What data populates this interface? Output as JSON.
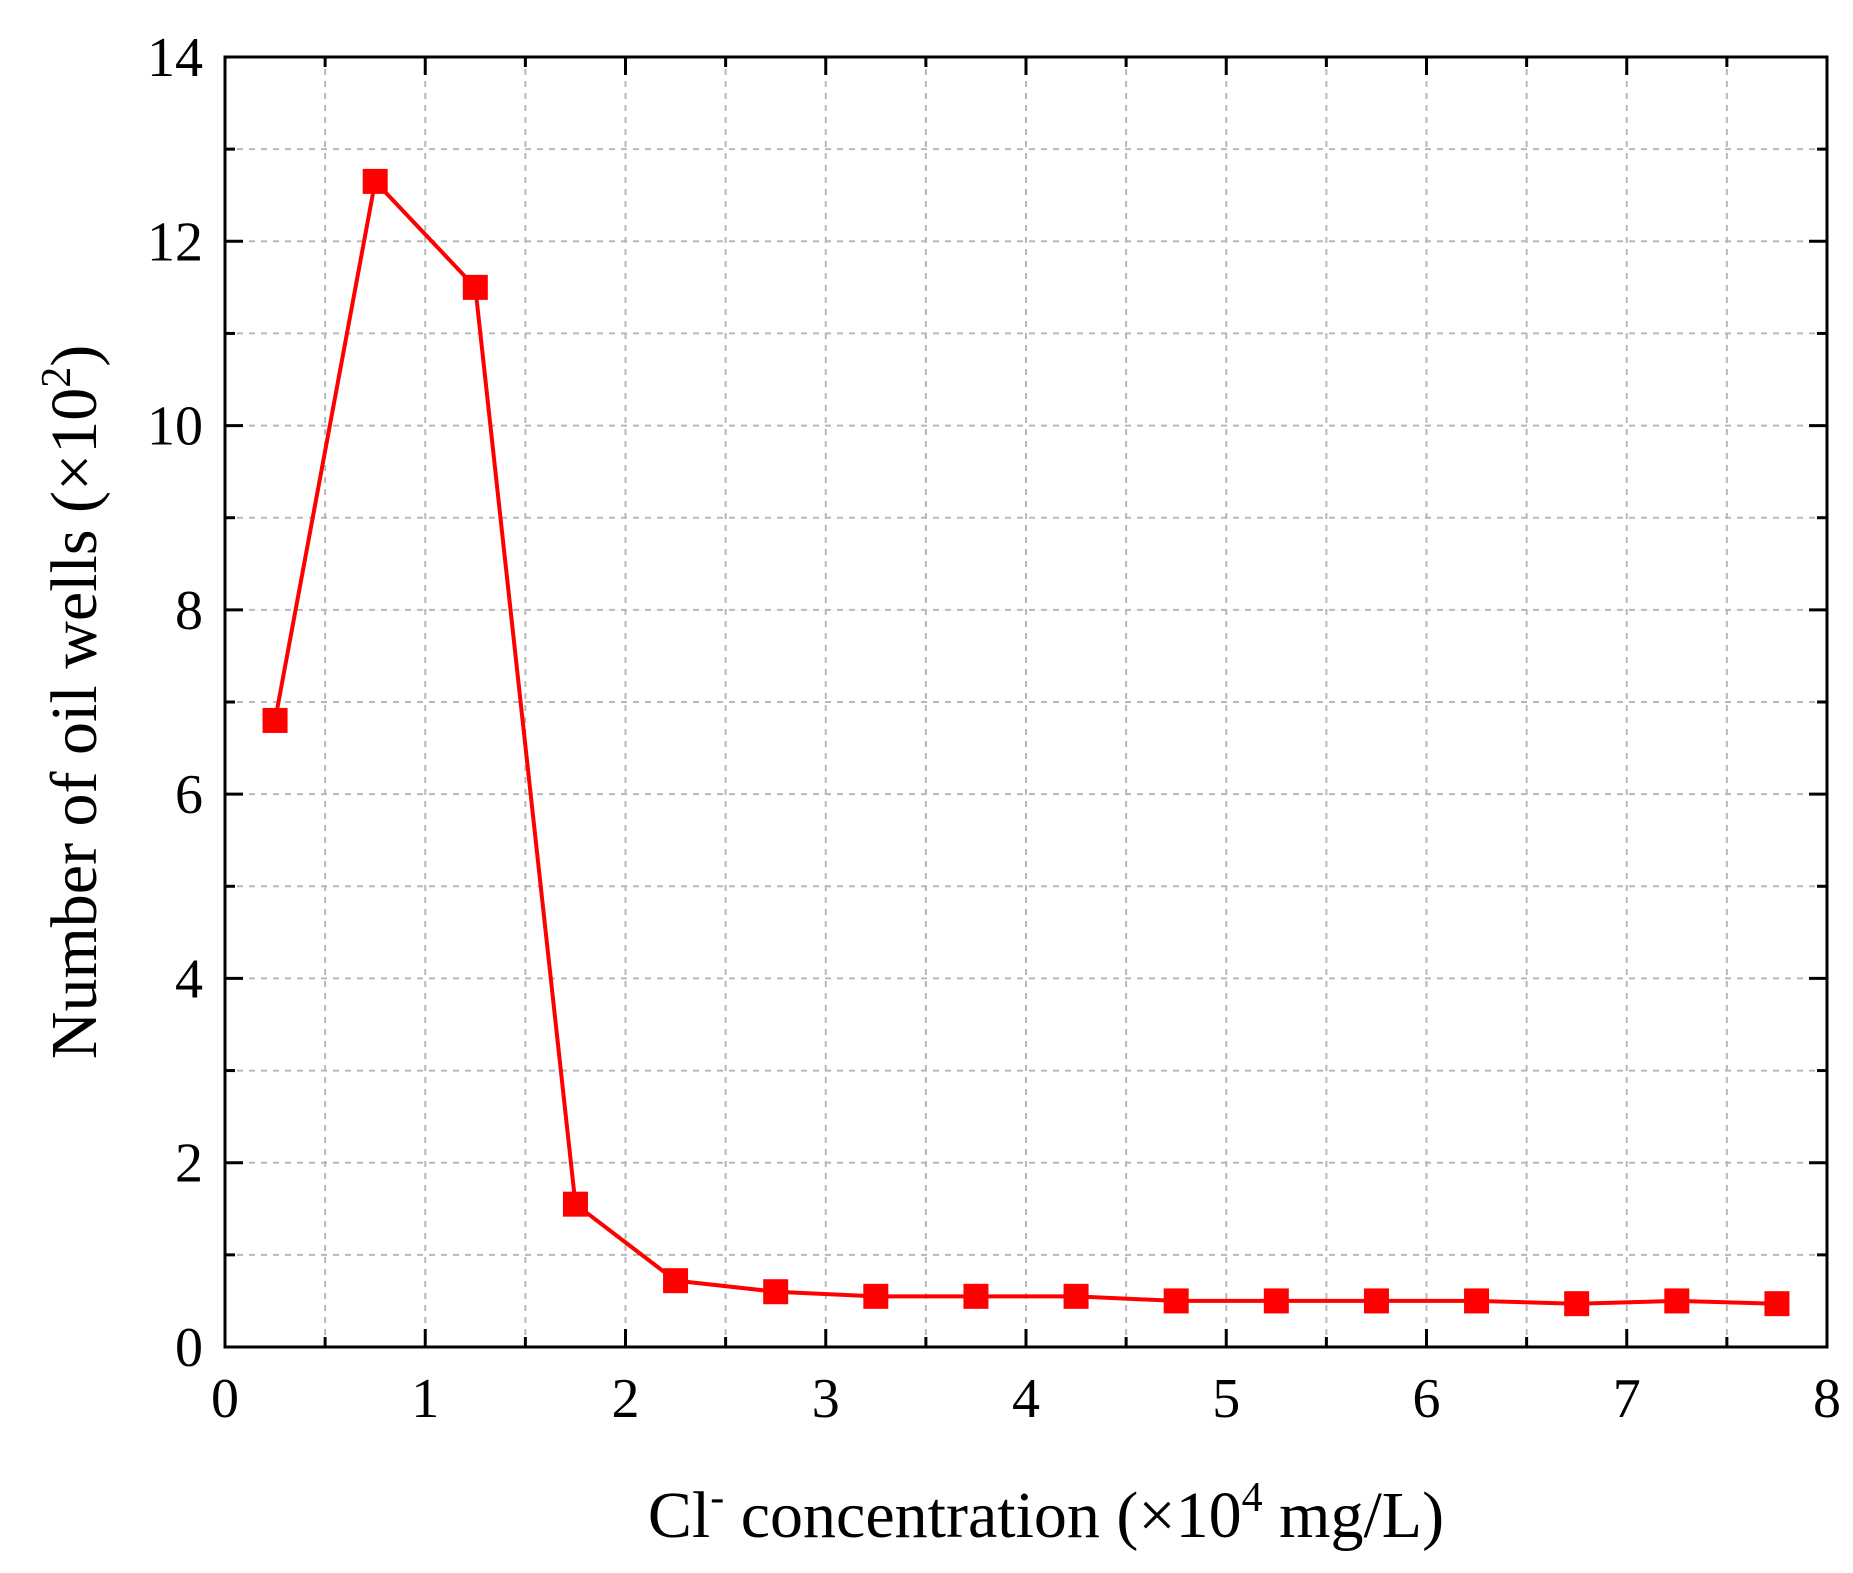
{
  "chart_data": {
    "type": "line",
    "title": "",
    "xlabel": {
      "prefix": "Cl",
      "prefix_sup": "-",
      "middle": " concentration (×10",
      "exp": "4",
      "suffix": " mg/L)"
    },
    "ylabel": {
      "main": "Number of oil wells (×10",
      "exp": "2",
      "suffix": ")"
    },
    "xlim": [
      0,
      8
    ],
    "ylim": [
      0,
      14
    ],
    "xticks": [
      "0",
      "1",
      "2",
      "3",
      "4",
      "5",
      "6",
      "7",
      "8"
    ],
    "yticks": [
      "0",
      "2",
      "4",
      "6",
      "8",
      "10",
      "12",
      "14"
    ],
    "grid": true,
    "color": "#ff0000",
    "series": [
      {
        "name": "Number of oil wells",
        "marker": "square",
        "x": [
          0.25,
          0.75,
          1.25,
          1.75,
          2.25,
          2.75,
          3.25,
          3.75,
          4.25,
          4.75,
          5.25,
          5.75,
          6.25,
          6.75,
          7.25,
          7.75
        ],
        "y": [
          6.8,
          12.65,
          11.5,
          1.55,
          0.72,
          0.6,
          0.55,
          0.55,
          0.55,
          0.5,
          0.5,
          0.5,
          0.5,
          0.47,
          0.5,
          0.47
        ]
      }
    ]
  }
}
